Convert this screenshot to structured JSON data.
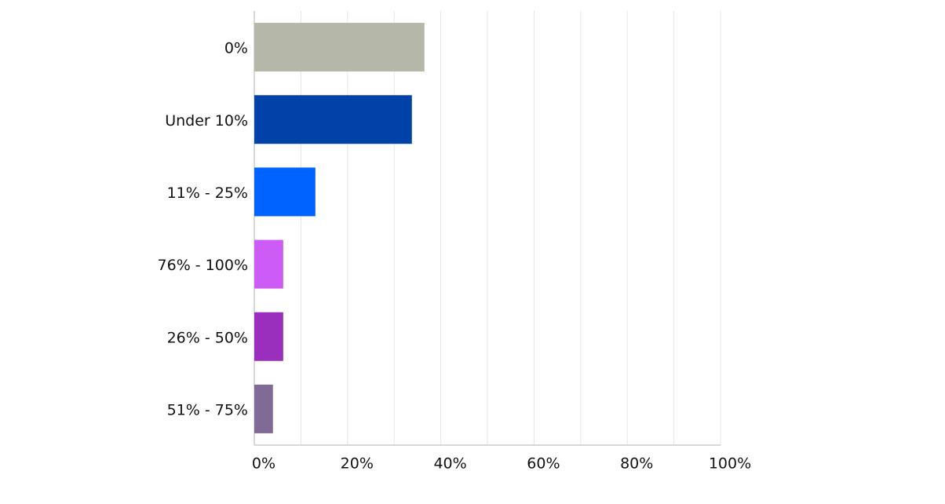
{
  "chart_data": {
    "type": "bar",
    "orientation": "horizontal",
    "categories": [
      "0%",
      "Under 10%",
      "11% - 25%",
      "76% - 100%",
      "26% - 50%",
      "51% - 75%"
    ],
    "values": [
      36.5,
      33.8,
      13.1,
      6.2,
      6.2,
      4.0
    ],
    "colors": [
      "#b5b8a8",
      "#0042a8",
      "#0062ff",
      "#cc5cf5",
      "#9b2fbd",
      "#826a96"
    ],
    "xlim": [
      0,
      100
    ],
    "xticks": [
      {
        "value": 0,
        "label": "0%"
      },
      {
        "value": 20,
        "label": "20%"
      },
      {
        "value": 40,
        "label": "40%"
      },
      {
        "value": 60,
        "label": "60%"
      },
      {
        "value": 80,
        "label": "80%"
      },
      {
        "value": 100,
        "label": "100%"
      }
    ],
    "minor_xticks": [
      10,
      30,
      50,
      70,
      90
    ],
    "grid": true
  }
}
